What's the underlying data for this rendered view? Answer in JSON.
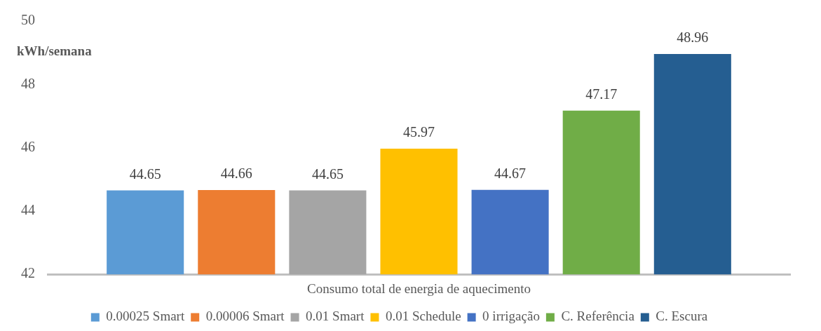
{
  "chart_data": {
    "type": "bar",
    "ylabel": "kWh/semana",
    "categories": [
      "Consumo total de energia de aquecimento"
    ],
    "series": [
      {
        "name": "0.00025 Smart",
        "color": "#5b9bd5",
        "values": [
          44.65
        ]
      },
      {
        "name": "0.00006 Smart",
        "color": "#ed7d31",
        "values": [
          44.66
        ]
      },
      {
        "name": "0.01 Smart",
        "color": "#a5a5a5",
        "values": [
          44.65
        ]
      },
      {
        "name": "0.01 Schedule",
        "color": "#ffc000",
        "values": [
          45.97
        ]
      },
      {
        "name": "0 irrigação",
        "color": "#4472c4",
        "values": [
          44.67
        ]
      },
      {
        "name": "C. Referência",
        "color": "#70ad47",
        "values": [
          47.17
        ]
      },
      {
        "name": "C. Escura",
        "color": "#255e91",
        "values": [
          48.96
        ]
      }
    ],
    "ylim": [
      42,
      50
    ],
    "yticks": [
      42,
      44,
      46,
      48,
      50
    ],
    "grid": false,
    "legend": "bottom",
    "data_labels": true
  }
}
